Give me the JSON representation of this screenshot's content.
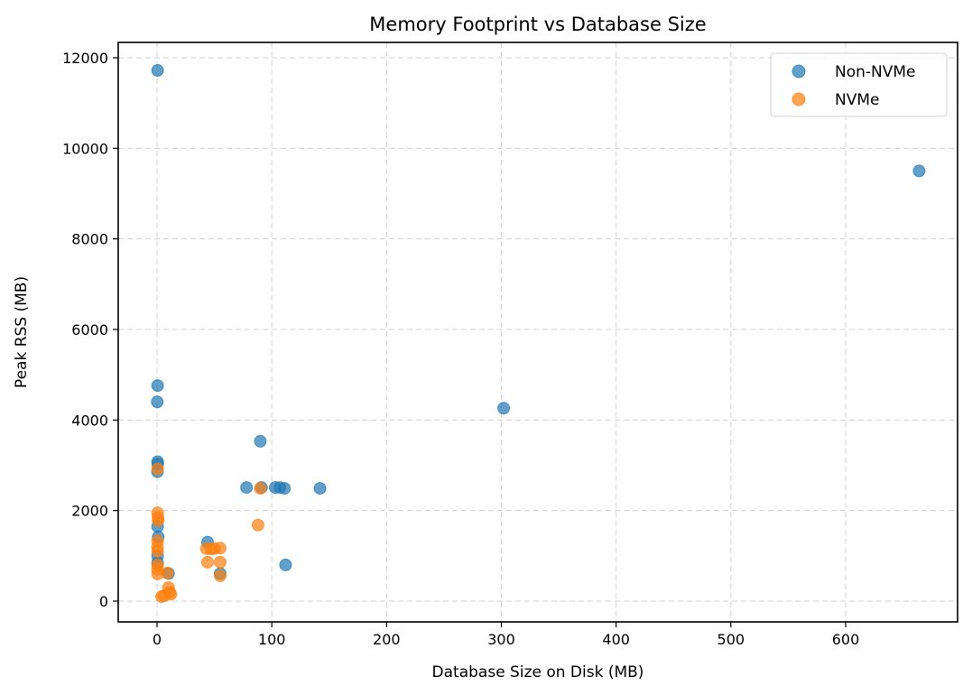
{
  "chart_data": {
    "type": "scatter",
    "title": "Memory Footprint vs Database Size",
    "xlabel": "Database Size on Disk (MB)",
    "ylabel": "Peak RSS (MB)",
    "xlim": [
      -34,
      697
    ],
    "ylim": [
      -470,
      12330
    ],
    "xticks": [
      0,
      100,
      200,
      300,
      400,
      500,
      600
    ],
    "yticks": [
      0,
      2000,
      4000,
      6000,
      8000,
      10000,
      12000
    ],
    "grid": true,
    "legend_position": "upper right",
    "series": [
      {
        "name": "Non-NVMe",
        "color": "#1f77b4",
        "points": [
          [
            0.5,
            11720
          ],
          [
            664,
            9500
          ],
          [
            302,
            4260
          ],
          [
            0.5,
            4760
          ],
          [
            0.2,
            4400
          ],
          [
            0.5,
            3080
          ],
          [
            0.6,
            3030
          ],
          [
            0.4,
            2860
          ],
          [
            90,
            3530
          ],
          [
            78,
            2510
          ],
          [
            91,
            2510
          ],
          [
            103,
            2510
          ],
          [
            107,
            2510
          ],
          [
            111,
            2490
          ],
          [
            142,
            2490
          ],
          [
            0.5,
            1650
          ],
          [
            1,
            1420
          ],
          [
            0.5,
            1000
          ],
          [
            0.5,
            850
          ],
          [
            10,
            610
          ],
          [
            44,
            1300
          ],
          [
            55,
            610
          ],
          [
            112,
            800
          ]
        ]
      },
      {
        "name": "NVMe",
        "color": "#ff7f0e",
        "points": [
          [
            0.5,
            2920
          ],
          [
            0.5,
            1950
          ],
          [
            0.8,
            1850
          ],
          [
            1,
            1780
          ],
          [
            0.5,
            1330
          ],
          [
            0.4,
            1200
          ],
          [
            0.5,
            1100
          ],
          [
            0.5,
            800
          ],
          [
            0.4,
            700
          ],
          [
            0.5,
            600
          ],
          [
            9,
            620
          ],
          [
            10,
            300
          ],
          [
            11,
            200
          ],
          [
            12,
            150
          ],
          [
            6,
            120
          ],
          [
            4,
            100
          ],
          [
            43,
            1160
          ],
          [
            47,
            1150
          ],
          [
            50,
            1160
          ],
          [
            55,
            1170
          ],
          [
            44,
            860
          ],
          [
            55,
            860
          ],
          [
            55,
            560
          ],
          [
            90,
            2490
          ],
          [
            88,
            1680
          ]
        ]
      }
    ]
  },
  "legend": {
    "items": [
      {
        "label": "Non-NVMe",
        "color": "#1f77b4"
      },
      {
        "label": "NVMe",
        "color": "#ff7f0e"
      }
    ]
  }
}
